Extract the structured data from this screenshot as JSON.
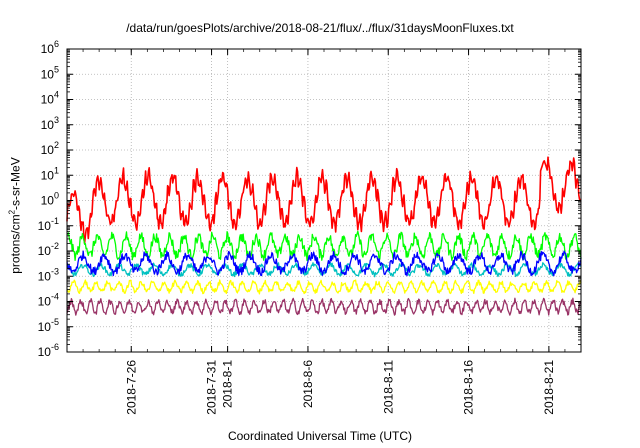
{
  "chart_data": {
    "type": "line",
    "title": "/data/run/goesPlots/archive/2018-08-21/flux/../flux/31daysMoonFluxes.txt",
    "xlabel": "Coordinated Universal Time (UTC)",
    "ylabel_parts": [
      "protons/cm",
      "2",
      "-s-sr-MeV"
    ],
    "yscale": "log",
    "ylim": [
      1e-06,
      1000000
    ],
    "y_ticks": [
      {
        "base": "10",
        "exp": "-6"
      },
      {
        "base": "10",
        "exp": "-5"
      },
      {
        "base": "10",
        "exp": "-4"
      },
      {
        "base": "10",
        "exp": "-3"
      },
      {
        "base": "10",
        "exp": "-2"
      },
      {
        "base": "10",
        "exp": "-1"
      },
      {
        "base": "10",
        "exp": "0"
      },
      {
        "base": "10",
        "exp": "1"
      },
      {
        "base": "10",
        "exp": "2"
      },
      {
        "base": "10",
        "exp": "3"
      },
      {
        "base": "10",
        "exp": "4"
      },
      {
        "base": "10",
        "exp": "5"
      },
      {
        "base": "10",
        "exp": "6"
      }
    ],
    "xlim": [
      "2018-07-22",
      "2018-08-23"
    ],
    "x_ticks": [
      "2018-7-26",
      "2018-7-31",
      "2018-8-1",
      "2018-8-6",
      "2018-8-11",
      "2018-8-16",
      "2018-8-21"
    ],
    "x_tick_dates": [
      "2018-07-26",
      "2018-07-31",
      "2018-08-01",
      "2018-08-06",
      "2018-08-11",
      "2018-08-16",
      "2018-08-21"
    ],
    "grid": true,
    "series": [
      {
        "color": "#ff0000",
        "level": 1.0,
        "spread": 1.3,
        "period_days": 1.55,
        "spike": 40
      },
      {
        "color": "#00ff00",
        "level": 0.016,
        "spread": 0.38,
        "period_days": 0.9
      },
      {
        "color": "#00c0c0",
        "level": 0.0018,
        "spread": 0.18,
        "period_days": 1.1
      },
      {
        "color": "#0000ff",
        "level": 0.0032,
        "spread": 0.32,
        "period_days": 1.3
      },
      {
        "color": "#ffff00",
        "level": 0.00038,
        "spread": 0.18,
        "period_days": 0.7
      },
      {
        "color": "#993366",
        "level": 6.2e-05,
        "spread": 0.22,
        "period_days": 0.6
      }
    ]
  }
}
